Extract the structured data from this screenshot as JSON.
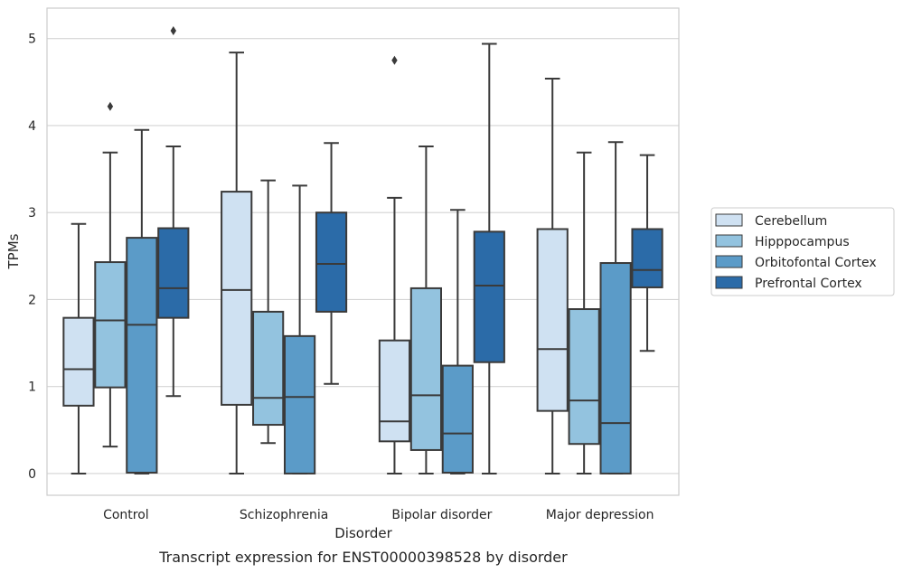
{
  "chart_data": {
    "type": "box",
    "xlabel": "Disorder",
    "ylabel": "TPMs",
    "caption": "Transcript expression for ENST00000398528 by disorder",
    "ylim": [
      -0.25,
      5.35
    ],
    "yticks": [
      0,
      1,
      2,
      3,
      4,
      5
    ],
    "grid": "horizontal",
    "legend_position": "right",
    "categories": [
      "Control",
      "Schizophrenia",
      "Bipolar disorder",
      "Major depression"
    ],
    "series": [
      {
        "name": "Cerebellum",
        "color": "#cfe1f2",
        "boxes": [
          {
            "min": 0,
            "q1": 0.78,
            "median": 1.2,
            "q3": 1.79,
            "max": 2.87,
            "outliers": []
          },
          {
            "min": 0,
            "q1": 0.79,
            "median": 2.11,
            "q3": 3.24,
            "max": 4.84,
            "outliers": []
          },
          {
            "min": 0,
            "q1": 0.37,
            "median": 0.6,
            "q3": 1.53,
            "max": 3.17,
            "outliers": [
              4.75
            ]
          },
          {
            "min": 0,
            "q1": 0.72,
            "median": 1.43,
            "q3": 2.81,
            "max": 4.54,
            "outliers": []
          }
        ]
      },
      {
        "name": "Hipppocampus",
        "color": "#93c3df",
        "boxes": [
          {
            "min": 0.31,
            "q1": 0.99,
            "median": 1.76,
            "q3": 2.43,
            "max": 3.69,
            "outliers": [
              4.22
            ]
          },
          {
            "min": 0.35,
            "q1": 0.56,
            "median": 0.87,
            "q3": 1.86,
            "max": 3.37,
            "outliers": []
          },
          {
            "min": 0,
            "q1": 0.27,
            "median": 0.9,
            "q3": 2.13,
            "max": 3.76,
            "outliers": []
          },
          {
            "min": 0,
            "q1": 0.34,
            "median": 0.84,
            "q3": 1.89,
            "max": 3.69,
            "outliers": []
          }
        ]
      },
      {
        "name": "Orbitofontal Cortex",
        "color": "#5b9bc8",
        "boxes": [
          {
            "min": 0,
            "q1": 0.01,
            "median": 1.71,
            "q3": 2.71,
            "max": 3.95,
            "outliers": []
          },
          {
            "min": 0,
            "q1": 0,
            "median": 0.88,
            "q3": 1.58,
            "max": 3.31,
            "outliers": []
          },
          {
            "min": 0,
            "q1": 0.01,
            "median": 0.46,
            "q3": 1.24,
            "max": 3.03,
            "outliers": []
          },
          {
            "min": 0,
            "q1": 0,
            "median": 0.58,
            "q3": 2.42,
            "max": 3.81,
            "outliers": []
          }
        ]
      },
      {
        "name": "Prefrontal Cortex",
        "color": "#2b6ba8",
        "boxes": [
          {
            "min": 0.89,
            "q1": 1.79,
            "median": 2.13,
            "q3": 2.82,
            "max": 3.76,
            "outliers": [
              5.09
            ]
          },
          {
            "min": 1.03,
            "q1": 1.86,
            "median": 2.41,
            "q3": 3.0,
            "max": 3.8,
            "outliers": []
          },
          {
            "min": 0,
            "q1": 1.28,
            "median": 2.16,
            "q3": 2.78,
            "max": 4.94,
            "outliers": []
          },
          {
            "min": 1.41,
            "q1": 2.14,
            "median": 2.34,
            "q3": 2.81,
            "max": 3.66,
            "outliers": []
          }
        ]
      }
    ]
  }
}
